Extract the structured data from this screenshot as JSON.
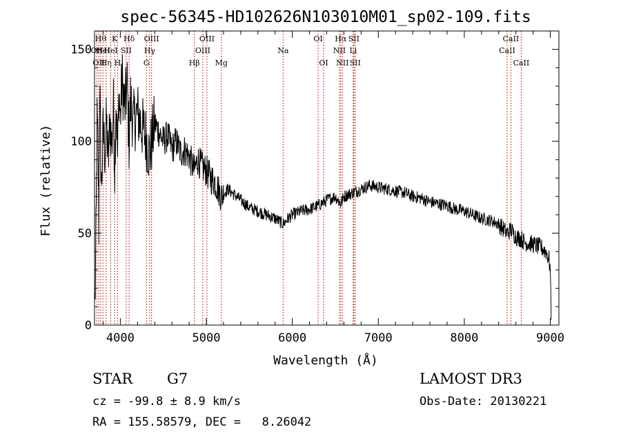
{
  "chart_data": {
    "type": "line",
    "title": "spec-56345-HD102626N103010M01_sp02-109.fits",
    "xlabel": "Wavelength (Å)",
    "ylabel": "Flux (relative)",
    "xlim": [
      3700,
      9100
    ],
    "ylim": [
      0,
      160
    ],
    "xticks": [
      {
        "value": 4000,
        "label": "4000"
      },
      {
        "value": 5000,
        "label": "5000"
      },
      {
        "value": 6000,
        "label": "6000"
      },
      {
        "value": 7000,
        "label": "7000"
      },
      {
        "value": 8000,
        "label": "8000"
      },
      {
        "value": 9000,
        "label": "9000"
      }
    ],
    "yticks": [
      {
        "value": 0,
        "label": "0"
      },
      {
        "value": 50,
        "label": "50"
      },
      {
        "value": 100,
        "label": "100"
      },
      {
        "value": 150,
        "label": "150"
      }
    ],
    "spectrum": [
      [
        3705,
        12
      ],
      [
        3712,
        30
      ],
      [
        3720,
        60
      ],
      [
        3730,
        110
      ],
      [
        3740,
        95
      ],
      [
        3750,
        55
      ],
      [
        3760,
        130
      ],
      [
        3770,
        100
      ],
      [
        3780,
        75
      ],
      [
        3800,
        105
      ],
      [
        3820,
        95
      ],
      [
        3840,
        110
      ],
      [
        3860,
        88
      ],
      [
        3880,
        112
      ],
      [
        3900,
        98
      ],
      [
        3920,
        118
      ],
      [
        3934,
        85
      ],
      [
        3950,
        125
      ],
      [
        3968,
        90
      ],
      [
        3985,
        128
      ],
      [
        4000,
        112
      ],
      [
        4020,
        135
      ],
      [
        4050,
        118
      ],
      [
        4080,
        130
      ],
      [
        4101,
        100
      ],
      [
        4120,
        122
      ],
      [
        4150,
        110
      ],
      [
        4200,
        115
      ],
      [
        4250,
        108
      ],
      [
        4300,
        102
      ],
      [
        4340,
        92
      ],
      [
        4400,
        110
      ],
      [
        4450,
        105
      ],
      [
        4500,
        100
      ],
      [
        4550,
        103
      ],
      [
        4600,
        96
      ],
      [
        4650,
        100
      ],
      [
        4700,
        94
      ],
      [
        4750,
        95
      ],
      [
        4800,
        92
      ],
      [
        4861,
        84
      ],
      [
        4900,
        90
      ],
      [
        4950,
        86
      ],
      [
        5000,
        84
      ],
      [
        5050,
        80
      ],
      [
        5100,
        78
      ],
      [
        5175,
        70
      ],
      [
        5250,
        74
      ],
      [
        5300,
        72
      ],
      [
        5400,
        68
      ],
      [
        5500,
        64
      ],
      [
        5600,
        62
      ],
      [
        5700,
        60
      ],
      [
        5800,
        58
      ],
      [
        5893,
        55
      ],
      [
        5950,
        58
      ],
      [
        6000,
        60
      ],
      [
        6100,
        62
      ],
      [
        6200,
        63
      ],
      [
        6300,
        65
      ],
      [
        6400,
        68
      ],
      [
        6500,
        70
      ],
      [
        6563,
        66
      ],
      [
        6600,
        70
      ],
      [
        6700,
        72
      ],
      [
        6800,
        74
      ],
      [
        6900,
        76
      ],
      [
        7000,
        75
      ],
      [
        7100,
        74
      ],
      [
        7200,
        73
      ],
      [
        7300,
        72
      ],
      [
        7400,
        70
      ],
      [
        7500,
        69
      ],
      [
        7600,
        67
      ],
      [
        7700,
        66
      ],
      [
        7800,
        65
      ],
      [
        7900,
        63
      ],
      [
        8000,
        62
      ],
      [
        8100,
        60
      ],
      [
        8200,
        58
      ],
      [
        8300,
        57
      ],
      [
        8400,
        55
      ],
      [
        8498,
        50
      ],
      [
        8542,
        52
      ],
      [
        8600,
        48
      ],
      [
        8662,
        47
      ],
      [
        8700,
        45
      ],
      [
        8800,
        44
      ],
      [
        8900,
        42
      ],
      [
        8950,
        40
      ],
      [
        8985,
        36
      ],
      [
        9000,
        30
      ],
      [
        9005,
        15
      ],
      [
        9010,
        3
      ]
    ],
    "lines": [
      {
        "x": 3727,
        "label": "OII",
        "row": 1
      },
      {
        "x": 3750,
        "label": "OII",
        "row": 2
      },
      {
        "x": 3771,
        "label": "Hθ",
        "row": 0
      },
      {
        "x": 3798,
        "label": "HeI",
        "row": 1
      },
      {
        "x": 3835,
        "label": "Hη",
        "row": 2
      },
      {
        "x": 3889,
        "label": "HeI",
        "row": 1
      },
      {
        "x": 3934,
        "label": "K",
        "row": 0
      },
      {
        "x": 3968,
        "label": "H",
        "row": 2
      },
      {
        "x": 4068,
        "label": "SII",
        "row": 1
      },
      {
        "x": 4102,
        "label": "Hδ",
        "row": 0
      },
      {
        "x": 4304,
        "label": "G",
        "row": 2
      },
      {
        "x": 4341,
        "label": "Hγ",
        "row": 1
      },
      {
        "x": 4363,
        "label": "OIII",
        "row": 0
      },
      {
        "x": 4861,
        "label": "Hβ",
        "row": 2
      },
      {
        "x": 4959,
        "label": "OIII",
        "row": 1
      },
      {
        "x": 5007,
        "label": "OIII",
        "row": 0
      },
      {
        "x": 5175,
        "label": "Mg",
        "row": 2
      },
      {
        "x": 5893,
        "label": "Na",
        "row": 1
      },
      {
        "x": 6300,
        "label": "OI",
        "row": 0
      },
      {
        "x": 6364,
        "label": "OI",
        "row": 2
      },
      {
        "x": 6548,
        "label": "NII",
        "row": 1
      },
      {
        "x": 6563,
        "label": "Hα",
        "row": 0
      },
      {
        "x": 6583,
        "label": "NII",
        "row": 2
      },
      {
        "x": 6708,
        "label": "Li",
        "row": 1
      },
      {
        "x": 6716,
        "label": "SII",
        "row": 0
      },
      {
        "x": 6731,
        "label": "SII",
        "row": 2
      },
      {
        "x": 8498,
        "label": "CaII",
        "row": 1
      },
      {
        "x": 8542,
        "label": "CaII",
        "row": 0
      },
      {
        "x": 8662,
        "label": "CaII",
        "row": 2
      }
    ]
  },
  "info": {
    "object_class": "STAR",
    "subclass": "G7",
    "survey": "LAMOST DR3",
    "cz_text": "cz = -99.8 ± 8.9 km/s",
    "obs_date_text": "Obs-Date: 20130221",
    "radec_text": "RA = 155.58579, DEC =   8.26042"
  }
}
